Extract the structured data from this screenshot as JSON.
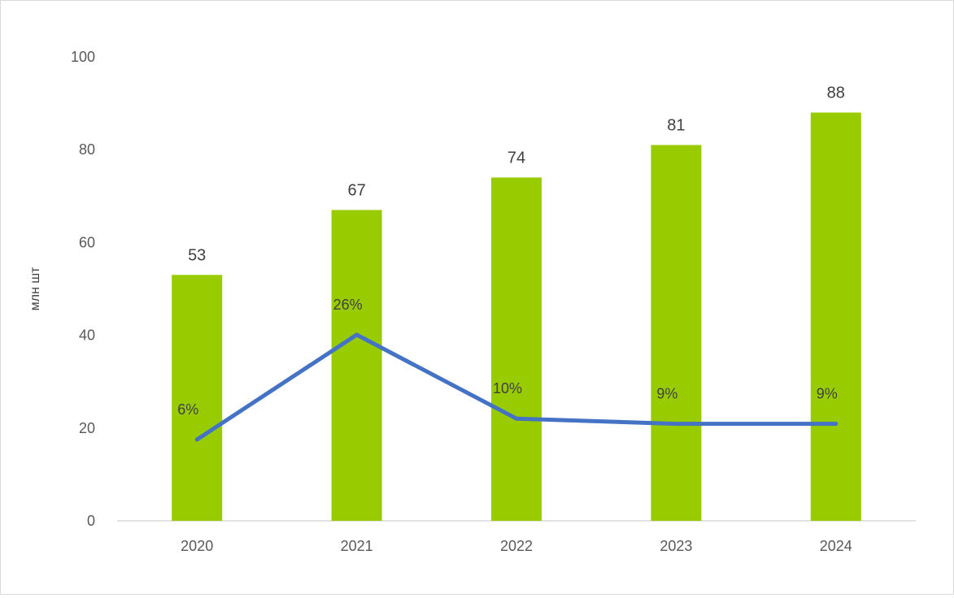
{
  "chart_data": {
    "type": "bar",
    "categories": [
      "2020",
      "2021",
      "2022",
      "2023",
      "2024"
    ],
    "ylabel": "млн шт",
    "xlabel": "",
    "ylim": [
      0,
      100
    ],
    "yticks": [
      0,
      20,
      40,
      60,
      80,
      100
    ],
    "grid": false,
    "legend": "none",
    "series": [
      {
        "type": "bar",
        "values": [
          53,
          67,
          74,
          81,
          88
        ],
        "labels": [
          "53",
          "67",
          "74",
          "81",
          "88"
        ],
        "color": "#99cc00"
      },
      {
        "type": "line",
        "values": [
          6,
          26,
          10,
          9,
          9
        ],
        "labels": [
          "6%",
          "26%",
          "10%",
          "9%",
          "9%"
        ],
        "color": "#4472c4"
      }
    ]
  }
}
